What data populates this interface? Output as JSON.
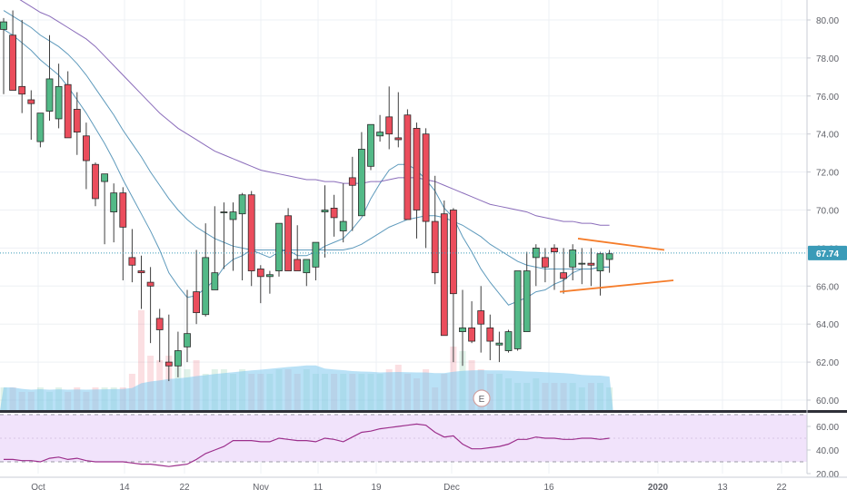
{
  "chart_data": [
    {
      "type": "candlestick",
      "last_price_label": "67.74",
      "last_price": 67.74,
      "ylim": [
        59.7,
        81.0
      ],
      "yticks": [
        60.0,
        62.0,
        64.0,
        66.0,
        68.0,
        70.0,
        72.0,
        74.0,
        76.0,
        78.0,
        80.0
      ],
      "ytick_labels": [
        "60.00",
        "62.00",
        "64.00",
        "66.00",
        "68.00",
        "70.00",
        "72.00",
        "74.00",
        "76.00",
        "78.00",
        "80.00"
      ],
      "x_labels": [
        "Oct",
        "14",
        "22",
        "Nov",
        "11",
        "19",
        "Dec",
        "16",
        "2020",
        "13",
        "22"
      ],
      "earnings_marker": "E",
      "grid": true,
      "colors": {
        "up": "#53b987",
        "down": "#eb4d5c",
        "ma_fast": "#4d8fb5",
        "ma_slow": "#7d5cb3",
        "volume": "#7fc9ef",
        "pattern": "#f57c2a",
        "rsi": "#9c2f8c",
        "rsi_band": "#f1e3fb"
      },
      "candles": {
        "open": [
          79.5,
          79.2,
          76.5,
          75.8,
          73.6,
          75.2,
          74.8,
          76.6,
          75.3,
          73.9,
          72.4,
          71.5,
          69.9,
          70.9,
          67.5,
          66.8,
          66.2,
          64.3,
          62.0,
          61.8,
          62.8,
          65.7,
          64.5,
          65.8,
          69.9,
          69.5,
          69.8,
          70.8,
          66.9,
          66.5,
          66.8,
          69.7,
          67.4,
          66.7,
          67.0,
          69.9,
          70.1,
          68.9,
          71.7,
          69.7,
          72.3,
          73.9,
          74.9,
          73.8,
          75.0,
          74.3,
          74.0,
          69.4,
          69.8,
          70.0,
          63.6,
          63.8,
          64.7,
          63.8,
          62.9,
          62.6,
          62.7,
          63.6,
          67.5,
          67.5,
          68.0,
          66.7,
          67.0,
          67.2,
          67.2,
          66.8,
          67.4
        ],
        "high": [
          80.1,
          80.5,
          80.0,
          76.3,
          75.0,
          79.2,
          77.7,
          77.3,
          76.2,
          74.6,
          72.5,
          71.6,
          71.4,
          71.2,
          69.0,
          67.6,
          67.0,
          64.8,
          64.5,
          63.6,
          65.8,
          67.9,
          69.3,
          70.2,
          70.4,
          70.4,
          70.9,
          71.0,
          67.1,
          66.8,
          69.2,
          70.1,
          69.2,
          67.4,
          68.1,
          71.3,
          70.8,
          71.4,
          72.8,
          74.1,
          74.5,
          75.0,
          76.5,
          76.2,
          75.3,
          74.6,
          74.3,
          71.8,
          70.5,
          70.1,
          65.8,
          65.2,
          66.0,
          64.5,
          63.6,
          63.7,
          66.3,
          67.8,
          68.2,
          68.0,
          68.2,
          68.0,
          68.2,
          68.0,
          68.0,
          67.8,
          67.9
        ],
        "low": [
          76.1,
          78.5,
          75.1,
          73.7,
          73.3,
          74.7,
          74.3,
          74.2,
          72.9,
          71.1,
          70.2,
          68.2,
          68.3,
          66.3,
          66.2,
          64.8,
          63.0,
          62.0,
          61.0,
          61.2,
          62.0,
          64.0,
          64.4,
          65.8,
          66.9,
          66.8,
          66.3,
          66.0,
          65.1,
          65.6,
          66.5,
          67.2,
          67.2,
          66.0,
          66.3,
          67.5,
          68.6,
          68.3,
          68.9,
          70.7,
          72.1,
          73.6,
          73.2,
          73.3,
          73.6,
          68.5,
          68.0,
          66.1,
          66.5,
          62.0,
          61.8,
          63.0,
          62.5,
          62.1,
          62.0,
          62.5,
          62.6,
          65.0,
          66.0,
          66.2,
          65.8,
          65.6,
          66.3,
          66.1,
          66.0,
          65.5,
          66.7
        ],
        "close": [
          79.9,
          76.3,
          76.1,
          75.6,
          75.1,
          76.9,
          76.5,
          73.8,
          74.1,
          72.6,
          70.6,
          71.9,
          70.9,
          69.1,
          67.1,
          66.7,
          66.0,
          63.7,
          61.8,
          62.6,
          63.5,
          64.6,
          67.5,
          66.7,
          69.9,
          69.9,
          70.8,
          66.8,
          66.5,
          66.6,
          69.3,
          66.8,
          66.8,
          67.4,
          68.3,
          70.0,
          69.6,
          69.4,
          71.3,
          73.2,
          74.5,
          74.1,
          74.0,
          73.7,
          69.5,
          70.0,
          69.4,
          66.7,
          63.4,
          65.6,
          63.8,
          63.1,
          64.0,
          63.1,
          63.0,
          63.6,
          66.8,
          66.8,
          68.0,
          67.0,
          67.8,
          66.4,
          67.9,
          67.2,
          67.1,
          67.7,
          67.7
        ]
      },
      "series": [
        {
          "name": "",
          "values": [
            79.5,
            79.2,
            78.8,
            78.4,
            77.9,
            77.5,
            77.1,
            76.5,
            75.8,
            75.1,
            74.3,
            73.5,
            72.6,
            71.6,
            70.7,
            69.8,
            68.9,
            67.9,
            66.7,
            66.0,
            65.4,
            65.5,
            65.9,
            66.3,
            67.0,
            67.4,
            67.6,
            67.9,
            67.7,
            67.5,
            67.8,
            67.9,
            67.6,
            67.6,
            67.8,
            68.1,
            68.3,
            68.5,
            69.0,
            69.6,
            70.6,
            71.4,
            72.1,
            72.4,
            72.4,
            72.1,
            71.6,
            71.0,
            70.1,
            69.6,
            68.6,
            67.8,
            66.9,
            66.2,
            65.6,
            65.0,
            65.2,
            65.4,
            65.7,
            65.8,
            66.1,
            66.3,
            66.7,
            66.9,
            66.9,
            67.0,
            67.0
          ]
        },
        {
          "name": "",
          "values": [
            80.5,
            80.2,
            79.9,
            79.6,
            79.2,
            78.9,
            78.6,
            78.2,
            77.7,
            77.1,
            76.4,
            75.7,
            75.0,
            74.2,
            73.5,
            72.8,
            72.0,
            71.3,
            70.6,
            70.0,
            69.5,
            69.1,
            68.8,
            68.5,
            68.3,
            68.1,
            68.0,
            67.9,
            67.9,
            67.9,
            67.9,
            67.9,
            67.9,
            67.9,
            67.9,
            67.9,
            67.9,
            67.9,
            68.0,
            68.2,
            68.5,
            68.8,
            69.1,
            69.3,
            69.5,
            69.6,
            69.7,
            69.7,
            69.6,
            69.4,
            69.2,
            68.9,
            68.6,
            68.2,
            67.9,
            67.6,
            67.3,
            67.1,
            67.0,
            66.9,
            66.9,
            66.9,
            66.9,
            66.9,
            66.9,
            67.0,
            67.0
          ]
        },
        {
          "name": "",
          "values": [
            81.5,
            81.3,
            81.0,
            80.7,
            80.4,
            80.2,
            79.9,
            79.6,
            79.3,
            79.0,
            78.6,
            78.1,
            77.6,
            77.1,
            76.6,
            76.1,
            75.6,
            75.1,
            74.7,
            74.3,
            74.0,
            73.7,
            73.4,
            73.1,
            72.9,
            72.7,
            72.5,
            72.3,
            72.1,
            72.0,
            71.9,
            71.8,
            71.7,
            71.6,
            71.6,
            71.5,
            71.5,
            71.4,
            71.4,
            71.4,
            71.5,
            71.5,
            71.6,
            71.7,
            71.7,
            71.7,
            71.6,
            71.5,
            71.3,
            71.1,
            70.9,
            70.7,
            70.5,
            70.3,
            70.2,
            70.1,
            70.0,
            69.9,
            69.7,
            69.6,
            69.5,
            69.4,
            69.4,
            69.3,
            69.3,
            69.2,
            69.2
          ]
        }
      ],
      "volume": [
        5,
        5,
        4,
        4,
        5,
        4,
        5,
        4,
        5,
        4,
        5,
        5,
        5,
        5,
        8,
        22,
        12,
        11,
        12,
        10,
        9,
        11,
        8,
        9,
        9,
        8,
        9,
        8,
        8,
        8,
        9,
        9,
        8,
        9,
        8,
        8,
        8,
        8,
        8,
        8,
        8,
        8,
        9,
        10,
        8,
        7,
        9,
        5,
        8,
        14,
        13,
        11,
        9,
        8,
        8,
        7,
        6,
        6,
        7,
        6,
        6,
        6,
        6,
        5,
        6,
        6,
        5
      ]
    },
    {
      "type": "line",
      "ylim": [
        17,
        73
      ],
      "yticks": [
        20,
        40,
        60
      ],
      "ytick_labels": [
        "20.00",
        "40.00",
        "60.00"
      ],
      "band": [
        30,
        70
      ],
      "values": [
        32,
        32,
        31,
        31,
        30,
        33,
        34,
        32,
        33,
        31,
        30,
        30,
        30,
        30,
        29,
        28,
        28,
        27,
        26,
        27,
        28,
        32,
        37,
        40,
        43,
        48,
        48,
        48,
        47,
        47,
        50,
        49,
        48,
        48,
        47,
        50,
        49,
        47,
        51,
        55,
        56,
        58,
        59,
        60,
        61,
        62,
        61,
        55,
        51,
        52,
        45,
        41,
        41,
        42,
        43,
        45,
        49,
        49,
        51,
        50,
        50,
        49,
        49,
        50,
        50,
        49,
        50
      ]
    }
  ]
}
